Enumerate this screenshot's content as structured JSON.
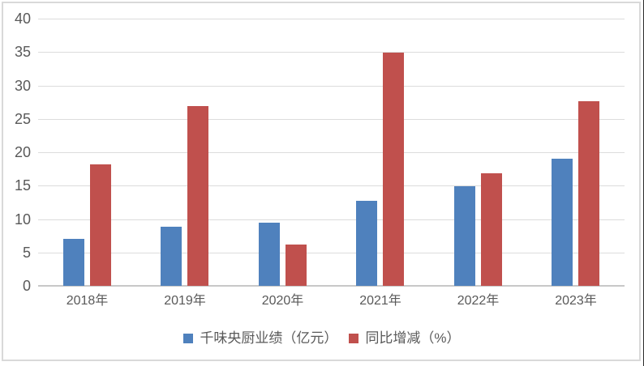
{
  "chart_data": {
    "type": "bar",
    "title": "",
    "xlabel": "",
    "ylabel": "",
    "categories": [
      "2018年",
      "2019年",
      "2020年",
      "2021年",
      "2022年",
      "2023年"
    ],
    "series": [
      {
        "name": "千味央厨业绩（亿元）",
        "key": "revenue",
        "color": "#4F81BD",
        "values": [
          7.0,
          8.9,
          9.4,
          12.7,
          14.9,
          19.0
        ]
      },
      {
        "name": "同比增减（%）",
        "key": "growth",
        "color": "#C0504D",
        "values": [
          18.2,
          26.9,
          6.2,
          34.9,
          16.9,
          27.7
        ]
      }
    ],
    "ylim": [
      0,
      40
    ],
    "yticks": [
      0,
      5,
      10,
      15,
      20,
      25,
      30,
      35,
      40
    ],
    "grid": true,
    "legend_position": "bottom",
    "colors": {
      "gridline": "#dcdcdc",
      "axis_line": "#c8c8c8",
      "tick_text": "#595959",
      "background": "#ffffff",
      "border": "#d9d9d9"
    }
  }
}
